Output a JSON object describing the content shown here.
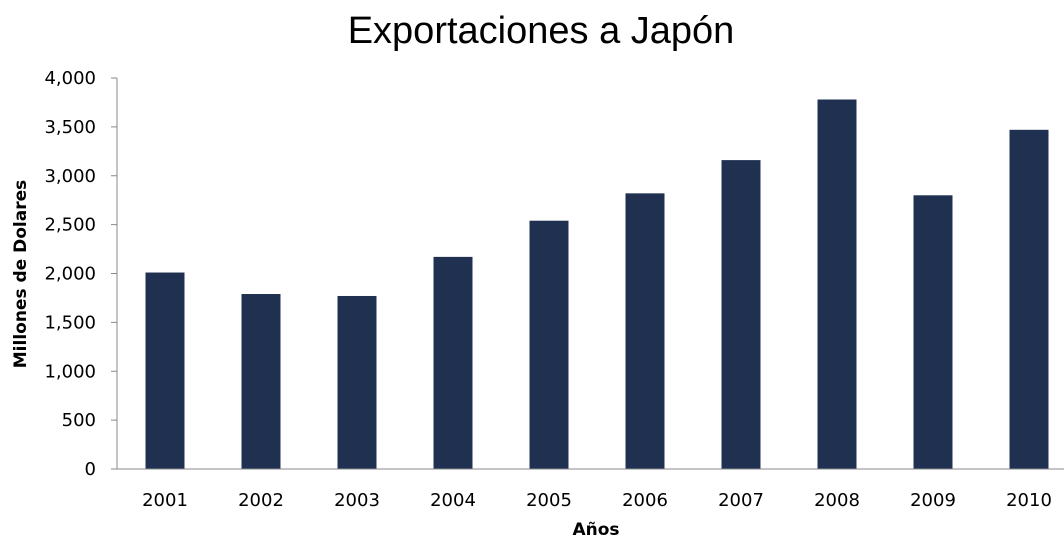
{
  "chart_data": {
    "type": "bar",
    "title": "Exportaciones a Japón",
    "xlabel": "Años",
    "ylabel": "Millones de Dolares",
    "categories": [
      "2001",
      "2002",
      "2003",
      "2004",
      "2005",
      "2006",
      "2007",
      "2008",
      "2009",
      "2010"
    ],
    "values": [
      2010,
      1790,
      1770,
      2170,
      2540,
      2820,
      3160,
      3780,
      2800,
      3470
    ],
    "ylim": [
      0,
      4000
    ],
    "yticks": [
      "0",
      "500",
      "1,000",
      "1,500",
      "2,000",
      "2,500",
      "3,000",
      "3,500",
      "4,000"
    ],
    "grid": false,
    "bar_color": "#1f3050"
  }
}
